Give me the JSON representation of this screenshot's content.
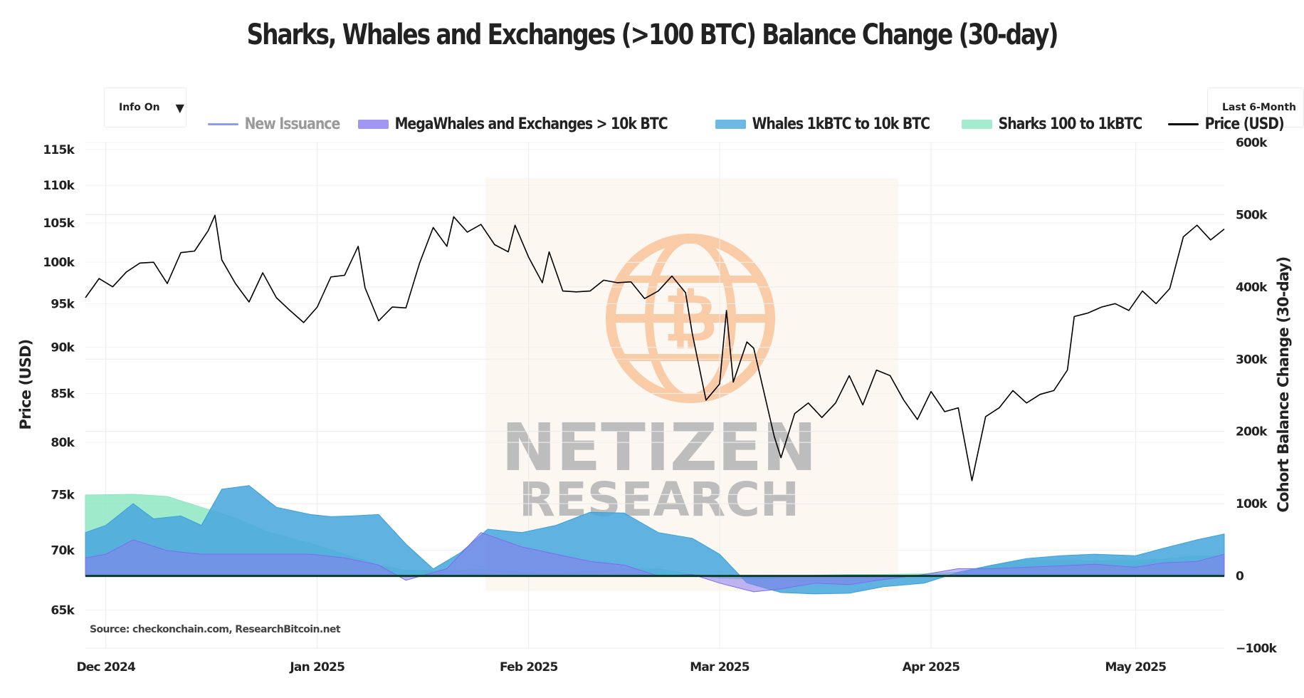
{
  "title": "Sharks, Whales and Exchanges (>100 BTC) Balance Change (30-day)",
  "controls": {
    "info_button": "Info On",
    "range_button": "Last 6-Month"
  },
  "source": "Source: checkonchain.com, ResearchBitcoin.net",
  "watermark": {
    "line1": "NETIZEN",
    "line2": "RESEARCH",
    "logo": "bitcoin-globe-icon"
  },
  "colors": {
    "new_issuance": "#8a9cf5",
    "megawhales": "#8b7cf0",
    "whales": "#4aa8dd",
    "sharks": "#8fe6c3",
    "price": "#000000",
    "zero_line": "#0c3b2e",
    "watermark_orange": "#f6a96a"
  },
  "legend": [
    {
      "label": "New Issuance",
      "key": "new_issuance",
      "kind": "line",
      "active": false
    },
    {
      "label": "MegaWhales and Exchanges > 10k BTC",
      "key": "megawhales",
      "kind": "area",
      "active": true
    },
    {
      "label": "Whales 1kBTC to 10k BTC",
      "key": "whales",
      "kind": "area",
      "active": true
    },
    {
      "label": "Sharks 100 to 1kBTC",
      "key": "sharks",
      "kind": "area",
      "active": true
    },
    {
      "label": "Price (USD)",
      "key": "price",
      "kind": "line",
      "active": true
    }
  ],
  "chart_data": {
    "type": "area",
    "title": "Sharks, Whales and Exchanges (>100 BTC) Balance Change (30-day)",
    "x_range": [
      "2024-11-28",
      "2025-05-14"
    ],
    "x_ticks": [
      {
        "date": "2024-12-01",
        "label": "Dec 2024"
      },
      {
        "date": "2025-01-01",
        "label": "Jan 2025"
      },
      {
        "date": "2025-02-01",
        "label": "Feb 2025"
      },
      {
        "date": "2025-03-01",
        "label": "Mar 2025"
      },
      {
        "date": "2025-04-01",
        "label": "Apr 2025"
      },
      {
        "date": "2025-05-01",
        "label": "May 2025"
      }
    ],
    "y_left": {
      "label": "Price (USD)",
      "scale": "log",
      "range": [
        62000,
        116000
      ],
      "ticks": [
        {
          "value": 65000,
          "label": "65k"
        },
        {
          "value": 70000,
          "label": "70k"
        },
        {
          "value": 75000,
          "label": "75k"
        },
        {
          "value": 80000,
          "label": "80k"
        },
        {
          "value": 85000,
          "label": "85k"
        },
        {
          "value": 90000,
          "label": "90k"
        },
        {
          "value": 95000,
          "label": "95k"
        },
        {
          "value": 100000,
          "label": "100k"
        },
        {
          "value": 105000,
          "label": "105k"
        },
        {
          "value": 110000,
          "label": "110k"
        },
        {
          "value": 115000,
          "label": "115k"
        }
      ]
    },
    "y_right": {
      "label": "Cohort Balance Change (30-day)",
      "scale": "linear",
      "range": [
        -100000,
        600000
      ],
      "ticks": [
        {
          "value": -100000,
          "label": "−100k"
        },
        {
          "value": 0,
          "label": "0"
        },
        {
          "value": 100000,
          "label": "100k"
        },
        {
          "value": 200000,
          "label": "200k"
        },
        {
          "value": 300000,
          "label": "300k"
        },
        {
          "value": 400000,
          "label": "400k"
        },
        {
          "value": 500000,
          "label": "500k"
        },
        {
          "value": 600000,
          "label": "600k"
        }
      ]
    },
    "grid": true,
    "legend_position": "top",
    "series": [
      {
        "name": "Sharks 100 to 1kBTC",
        "key": "sharks",
        "axis": "right",
        "kind": "stacked-area",
        "points": [
          [
            "2024-11-28",
            112000
          ],
          [
            "2024-12-05",
            113000
          ],
          [
            "2024-12-10",
            110000
          ],
          [
            "2024-12-15",
            95000
          ],
          [
            "2024-12-20",
            80000
          ],
          [
            "2024-12-25",
            60000
          ],
          [
            "2024-12-31",
            45000
          ],
          [
            "2025-01-05",
            30000
          ],
          [
            "2025-01-10",
            15000
          ],
          [
            "2025-01-14",
            8000
          ],
          [
            "2025-01-20",
            7000
          ],
          [
            "2025-01-25",
            9000
          ],
          [
            "2025-01-31",
            5000
          ],
          [
            "2025-02-05",
            4000
          ],
          [
            "2025-02-10",
            6000
          ],
          [
            "2025-02-15",
            9000
          ],
          [
            "2025-02-20",
            10000
          ],
          [
            "2025-02-25",
            2000
          ],
          [
            "2025-03-01",
            -3000
          ],
          [
            "2025-03-06",
            -5000
          ],
          [
            "2025-03-10",
            -2000
          ],
          [
            "2025-03-15",
            1000
          ],
          [
            "2025-03-20",
            2000
          ],
          [
            "2025-03-25",
            2000
          ],
          [
            "2025-03-31",
            3000
          ],
          [
            "2025-04-05",
            5000
          ],
          [
            "2025-04-10",
            15000
          ],
          [
            "2025-04-15",
            22000
          ],
          [
            "2025-04-20",
            22000
          ],
          [
            "2025-04-25",
            21000
          ],
          [
            "2025-05-01",
            22000
          ],
          [
            "2025-05-05",
            23000
          ],
          [
            "2025-05-10",
            28000
          ],
          [
            "2025-05-14",
            27000
          ]
        ]
      },
      {
        "name": "MegaWhales and Exchanges > 10k BTC",
        "key": "megawhales",
        "axis": "right",
        "kind": "stacked-area",
        "points": [
          [
            "2024-11-28",
            25000
          ],
          [
            "2024-12-01",
            30000
          ],
          [
            "2024-12-05",
            50000
          ],
          [
            "2024-12-10",
            35000
          ],
          [
            "2024-12-15",
            30000
          ],
          [
            "2024-12-20",
            30000
          ],
          [
            "2024-12-25",
            30000
          ],
          [
            "2024-12-31",
            30000
          ],
          [
            "2025-01-05",
            25000
          ],
          [
            "2025-01-10",
            15000
          ],
          [
            "2025-01-14",
            -6000
          ],
          [
            "2025-01-20",
            10000
          ],
          [
            "2025-01-25",
            60000
          ],
          [
            "2025-01-31",
            40000
          ],
          [
            "2025-02-05",
            30000
          ],
          [
            "2025-02-10",
            20000
          ],
          [
            "2025-02-15",
            15000
          ],
          [
            "2025-02-20",
            0
          ],
          [
            "2025-02-25",
            2000
          ],
          [
            "2025-03-01",
            -10000
          ],
          [
            "2025-03-06",
            -22000
          ],
          [
            "2025-03-10",
            -18000
          ],
          [
            "2025-03-15",
            -10000
          ],
          [
            "2025-03-20",
            -12000
          ],
          [
            "2025-03-25",
            -5000
          ],
          [
            "2025-03-31",
            2000
          ],
          [
            "2025-04-05",
            10000
          ],
          [
            "2025-04-10",
            10000
          ],
          [
            "2025-04-15",
            12000
          ],
          [
            "2025-04-20",
            14000
          ],
          [
            "2025-04-25",
            16000
          ],
          [
            "2025-05-01",
            12000
          ],
          [
            "2025-05-05",
            18000
          ],
          [
            "2025-05-10",
            20000
          ],
          [
            "2025-05-14",
            30000
          ]
        ]
      },
      {
        "name": "Whales 1kBTC to 10k BTC",
        "key": "whales",
        "axis": "right",
        "kind": "stacked-area",
        "points": [
          [
            "2024-11-28",
            35000
          ],
          [
            "2024-12-01",
            40000
          ],
          [
            "2024-12-05",
            50000
          ],
          [
            "2024-12-08",
            38000
          ],
          [
            "2024-12-12",
            50000
          ],
          [
            "2024-12-15",
            40000
          ],
          [
            "2024-12-18",
            90000
          ],
          [
            "2024-12-22",
            95000
          ],
          [
            "2024-12-26",
            65000
          ],
          [
            "2024-12-31",
            55000
          ],
          [
            "2025-01-03",
            55000
          ],
          [
            "2025-01-06",
            60000
          ],
          [
            "2025-01-10",
            70000
          ],
          [
            "2025-01-14",
            50000
          ],
          [
            "2025-01-18",
            5000
          ],
          [
            "2025-01-22",
            2000
          ],
          [
            "2025-01-26",
            8000
          ],
          [
            "2025-01-31",
            20000
          ],
          [
            "2025-02-05",
            40000
          ],
          [
            "2025-02-10",
            68000
          ],
          [
            "2025-02-15",
            72000
          ],
          [
            "2025-02-20",
            60000
          ],
          [
            "2025-02-25",
            50000
          ],
          [
            "2025-03-01",
            40000
          ],
          [
            "2025-03-05",
            10000
          ],
          [
            "2025-03-10",
            -5000
          ],
          [
            "2025-03-15",
            -15000
          ],
          [
            "2025-03-20",
            -12000
          ],
          [
            "2025-03-25",
            -10000
          ],
          [
            "2025-03-31",
            -12000
          ],
          [
            "2025-04-05",
            -5000
          ],
          [
            "2025-04-10",
            5000
          ],
          [
            "2025-04-15",
            12000
          ],
          [
            "2025-04-20",
            14000
          ],
          [
            "2025-04-25",
            14000
          ],
          [
            "2025-05-01",
            16000
          ],
          [
            "2025-05-05",
            20000
          ],
          [
            "2025-05-10",
            30000
          ],
          [
            "2025-05-14",
            28000
          ]
        ]
      },
      {
        "name": "Price (USD)",
        "key": "price",
        "axis": "left",
        "kind": "line",
        "points": [
          [
            "2024-11-28",
            95700
          ],
          [
            "2024-11-30",
            98000
          ],
          [
            "2024-12-02",
            97000
          ],
          [
            "2024-12-04",
            98800
          ],
          [
            "2024-12-06",
            99900
          ],
          [
            "2024-12-08",
            100000
          ],
          [
            "2024-12-10",
            97400
          ],
          [
            "2024-12-12",
            101200
          ],
          [
            "2024-12-14",
            101400
          ],
          [
            "2024-12-16",
            104000
          ],
          [
            "2024-12-17",
            106000
          ],
          [
            "2024-12-18",
            100300
          ],
          [
            "2024-12-20",
            97400
          ],
          [
            "2024-12-22",
            95200
          ],
          [
            "2024-12-24",
            98700
          ],
          [
            "2024-12-26",
            95700
          ],
          [
            "2024-12-28",
            94200
          ],
          [
            "2024-12-30",
            92800
          ],
          [
            "2025-01-01",
            94600
          ],
          [
            "2025-01-03",
            98200
          ],
          [
            "2025-01-05",
            98400
          ],
          [
            "2025-01-07",
            102000
          ],
          [
            "2025-01-08",
            96900
          ],
          [
            "2025-01-10",
            93000
          ],
          [
            "2025-01-12",
            94600
          ],
          [
            "2025-01-14",
            94500
          ],
          [
            "2025-01-16",
            99900
          ],
          [
            "2025-01-18",
            104400
          ],
          [
            "2025-01-20",
            102000
          ],
          [
            "2025-01-21",
            105800
          ],
          [
            "2025-01-23",
            103800
          ],
          [
            "2025-01-25",
            104800
          ],
          [
            "2025-01-27",
            102200
          ],
          [
            "2025-01-29",
            101300
          ],
          [
            "2025-01-30",
            104700
          ],
          [
            "2025-02-01",
            100600
          ],
          [
            "2025-02-03",
            97500
          ],
          [
            "2025-02-04",
            101300
          ],
          [
            "2025-02-06",
            96500
          ],
          [
            "2025-02-08",
            96400
          ],
          [
            "2025-02-10",
            96500
          ],
          [
            "2025-02-12",
            97800
          ],
          [
            "2025-02-14",
            97500
          ],
          [
            "2025-02-16",
            97600
          ],
          [
            "2025-02-18",
            95600
          ],
          [
            "2025-02-20",
            96500
          ],
          [
            "2025-02-22",
            98300
          ],
          [
            "2025-02-24",
            96300
          ],
          [
            "2025-02-25",
            91500
          ],
          [
            "2025-02-27",
            84300
          ],
          [
            "2025-03-01",
            86000
          ],
          [
            "2025-03-02",
            94200
          ],
          [
            "2025-03-03",
            86200
          ],
          [
            "2025-03-05",
            90600
          ],
          [
            "2025-03-06",
            89900
          ],
          [
            "2025-03-07",
            86700
          ],
          [
            "2025-03-09",
            80600
          ],
          [
            "2025-03-10",
            78500
          ],
          [
            "2025-03-12",
            82900
          ],
          [
            "2025-03-14",
            84000
          ],
          [
            "2025-03-16",
            82500
          ],
          [
            "2025-03-18",
            84000
          ],
          [
            "2025-03-20",
            86900
          ],
          [
            "2025-03-22",
            83800
          ],
          [
            "2025-03-24",
            87500
          ],
          [
            "2025-03-26",
            86900
          ],
          [
            "2025-03-28",
            84300
          ],
          [
            "2025-03-30",
            82300
          ],
          [
            "2025-04-01",
            85200
          ],
          [
            "2025-04-03",
            83100
          ],
          [
            "2025-04-05",
            83500
          ],
          [
            "2025-04-07",
            76300
          ],
          [
            "2025-04-09",
            82600
          ],
          [
            "2025-04-11",
            83500
          ],
          [
            "2025-04-13",
            85300
          ],
          [
            "2025-04-15",
            84000
          ],
          [
            "2025-04-17",
            84900
          ],
          [
            "2025-04-19",
            85300
          ],
          [
            "2025-04-21",
            87500
          ],
          [
            "2025-04-22",
            93500
          ],
          [
            "2025-04-24",
            93900
          ],
          [
            "2025-04-26",
            94600
          ],
          [
            "2025-04-28",
            95000
          ],
          [
            "2025-04-30",
            94200
          ],
          [
            "2025-05-02",
            96500
          ],
          [
            "2025-05-04",
            95000
          ],
          [
            "2025-05-06",
            96800
          ],
          [
            "2025-05-08",
            103200
          ],
          [
            "2025-05-10",
            104700
          ],
          [
            "2025-05-12",
            102800
          ],
          [
            "2025-05-14",
            104200
          ]
        ]
      }
    ]
  }
}
